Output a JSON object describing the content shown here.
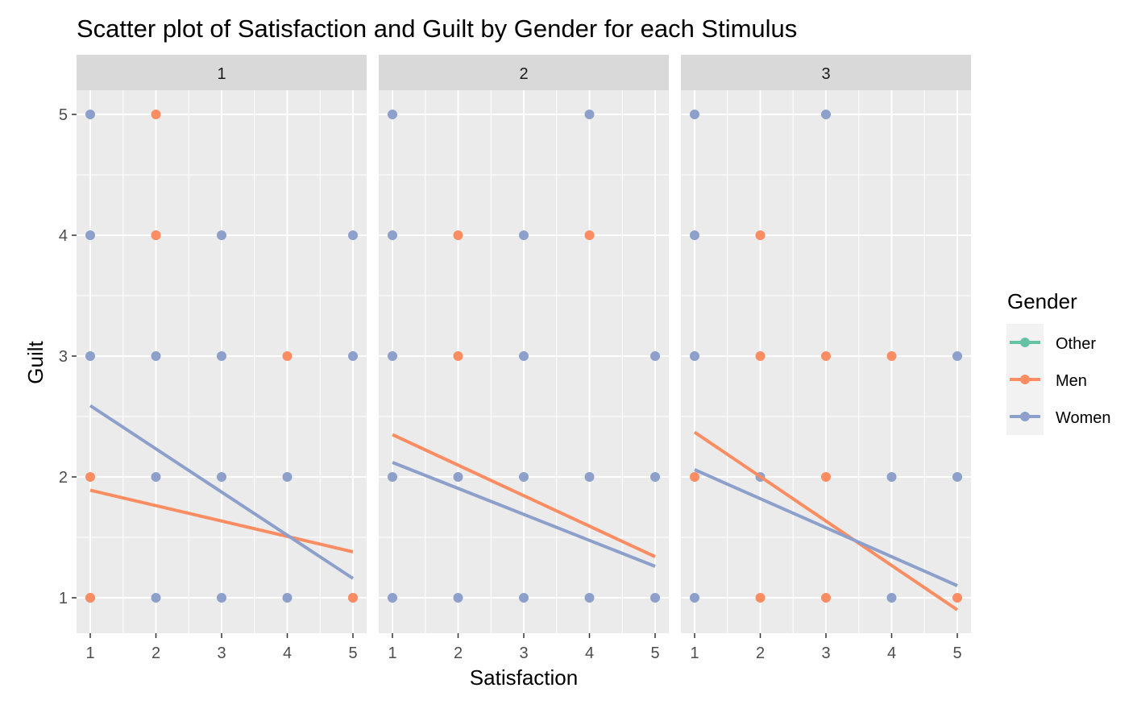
{
  "chart_data": {
    "type": "scatter",
    "title": "Scatter plot of Satisfaction and Guilt by Gender for each Stimulus",
    "xlabel": "Satisfaction",
    "ylabel": "Guilt",
    "xlim": [
      0.8,
      5.2
    ],
    "ylim": [
      0.7,
      5.2
    ],
    "x_ticks": [
      "1",
      "2",
      "3",
      "4",
      "5"
    ],
    "y_ticks": [
      "1",
      "2",
      "3",
      "4",
      "5"
    ],
    "grid": true,
    "legend": {
      "title": "Gender",
      "placement": "right",
      "entries": [
        {
          "name": "Other",
          "color": "#66c2a5"
        },
        {
          "name": "Men",
          "color": "#fc8d62"
        },
        {
          "name": "Women",
          "color": "#8da0cb"
        }
      ]
    },
    "panels": [
      {
        "label": "1",
        "points": {
          "Women": [
            [
              1,
              5
            ],
            [
              1,
              4
            ],
            [
              1,
              3
            ],
            [
              1,
              1
            ],
            [
              2,
              4
            ],
            [
              2,
              3
            ],
            [
              2,
              2
            ],
            [
              2,
              1
            ],
            [
              3,
              4
            ],
            [
              3,
              3
            ],
            [
              3,
              2
            ],
            [
              3,
              1
            ],
            [
              4,
              2
            ],
            [
              4,
              1
            ],
            [
              5,
              4
            ],
            [
              5,
              3
            ],
            [
              5,
              1
            ]
          ],
          "Men": [
            [
              1,
              2
            ],
            [
              1,
              1
            ],
            [
              2,
              5
            ],
            [
              2,
              4
            ],
            [
              4,
              3
            ],
            [
              5,
              1
            ]
          ]
        },
        "fits": {
          "Men": {
            "x": [
              1,
              5
            ],
            "y": [
              1.89,
              1.38
            ]
          },
          "Women": {
            "x": [
              1,
              5
            ],
            "y": [
              2.59,
              1.16
            ]
          }
        }
      },
      {
        "label": "2",
        "points": {
          "Women": [
            [
              1,
              5
            ],
            [
              1,
              4
            ],
            [
              1,
              3
            ],
            [
              1,
              2
            ],
            [
              1,
              1
            ],
            [
              2,
              2
            ],
            [
              2,
              1
            ],
            [
              3,
              4
            ],
            [
              3,
              3
            ],
            [
              3,
              2
            ],
            [
              3,
              1
            ],
            [
              4,
              5
            ],
            [
              4,
              2
            ],
            [
              4,
              1
            ],
            [
              5,
              3
            ],
            [
              5,
              2
            ],
            [
              5,
              1
            ]
          ],
          "Men": [
            [
              2,
              4
            ],
            [
              2,
              3
            ],
            [
              4,
              4
            ]
          ]
        },
        "fits": {
          "Men": {
            "x": [
              1,
              5
            ],
            "y": [
              2.35,
              1.34
            ]
          },
          "Women": {
            "x": [
              1,
              5
            ],
            "y": [
              2.12,
              1.26
            ]
          }
        }
      },
      {
        "label": "3",
        "points": {
          "Women": [
            [
              1,
              5
            ],
            [
              1,
              4
            ],
            [
              1,
              3
            ],
            [
              1,
              1
            ],
            [
              2,
              2
            ],
            [
              3,
              5
            ],
            [
              4,
              2
            ],
            [
              4,
              1
            ],
            [
              5,
              3
            ],
            [
              5,
              2
            ]
          ],
          "Men": [
            [
              1,
              2
            ],
            [
              2,
              4
            ],
            [
              2,
              3
            ],
            [
              2,
              1
            ],
            [
              3,
              3
            ],
            [
              3,
              2
            ],
            [
              3,
              1
            ],
            [
              4,
              3
            ],
            [
              5,
              1
            ]
          ]
        },
        "fits": {
          "Men": {
            "x": [
              1,
              5
            ],
            "y": [
              2.37,
              0.9
            ]
          },
          "Women": {
            "x": [
              1,
              5
            ],
            "y": [
              2.06,
              1.1
            ]
          }
        }
      }
    ]
  }
}
